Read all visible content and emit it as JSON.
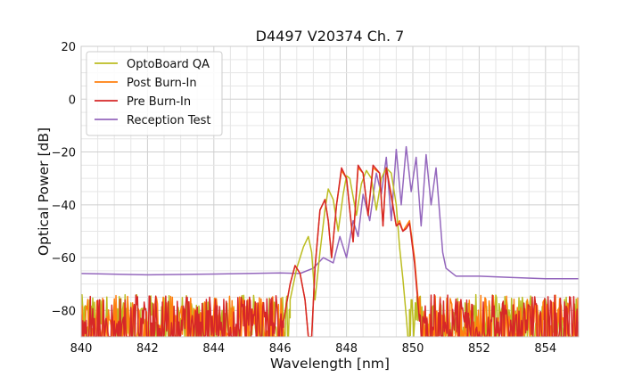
{
  "chart_data": {
    "type": "line",
    "title": "D4497 V20374 Ch. 7",
    "xlabel": "Wavelength [nm]",
    "ylabel": "Optical Power [dB]",
    "xlim": [
      840,
      855
    ],
    "ylim": [
      -90,
      20
    ],
    "xticks": [
      840,
      842,
      844,
      846,
      848,
      850,
      852,
      854
    ],
    "yticks": [
      -80,
      -60,
      -40,
      -20,
      0,
      20
    ],
    "ytick_labels": [
      "−80",
      "−60",
      "−40",
      "−20",
      "0",
      "20"
    ],
    "minor_grid": true,
    "grid": true,
    "legend_location": "top-left",
    "series": [
      {
        "name": "OptoBoard QA",
        "color": "#bcbd22",
        "noise_floor": {
          "x_range": [
            840,
            846.3
          ],
          "base": -82,
          "spread": 8,
          "excluding_x_range": [
            846.3,
            847.0
          ]
        },
        "x": [
          846.3,
          846.5,
          846.6,
          846.7,
          846.85,
          846.95,
          847.05,
          847.2,
          847.35,
          847.45,
          847.6,
          847.75,
          847.9,
          848.0,
          848.1,
          848.3,
          848.45,
          848.6,
          848.75,
          848.9,
          849.05,
          849.2,
          849.35,
          849.5,
          849.6,
          849.7,
          849.8,
          849.85,
          849.9
        ],
        "y": [
          -76,
          -64,
          -60,
          -56,
          -52,
          -58,
          -76,
          -58,
          -42,
          -34,
          -38,
          -50,
          -36,
          -29,
          -30,
          -44,
          -32,
          -27,
          -30,
          -42,
          -30,
          -26,
          -28,
          -40,
          -56,
          -68,
          -82,
          -90,
          -90
        ],
        "noise_floor_after": {
          "x_range": [
            849.9,
            855
          ],
          "base": -82,
          "spread": 8
        }
      },
      {
        "name": "Post Burn-In",
        "color": "#ff7f0e",
        "noise_floor": {
          "x_range": [
            840,
            846.1
          ],
          "base": -82,
          "spread": 8
        },
        "x": [
          846.1,
          846.3,
          846.45,
          846.6,
          846.75,
          846.85,
          846.95,
          847.05,
          847.2,
          847.35,
          847.45,
          847.55,
          847.7,
          847.85,
          848.0,
          848.2,
          848.35,
          848.5,
          848.65,
          848.8,
          849.0,
          849.1,
          849.2,
          849.35,
          849.5,
          849.6,
          849.7,
          849.8,
          849.9,
          850.05,
          850.2
        ],
        "y": [
          -84,
          -70,
          -63,
          -66,
          -76,
          -90,
          -90,
          -64,
          -42,
          -38,
          -46,
          -60,
          -40,
          -27,
          -30,
          -54,
          -26,
          -28,
          -44,
          -26,
          -28,
          -48,
          -26,
          -36,
          -48,
          -46,
          -50,
          -48,
          -46,
          -60,
          -82
        ],
        "noise_floor_after": {
          "x_range": [
            850.2,
            855
          ],
          "base": -82,
          "spread": 8
        }
      },
      {
        "name": "Pre Burn-In",
        "color": "#d62728",
        "noise_floor": {
          "x_range": [
            840,
            846.1
          ],
          "base": -82,
          "spread": 8
        },
        "x": [
          846.1,
          846.3,
          846.45,
          846.6,
          846.75,
          846.85,
          846.95,
          847.05,
          847.2,
          847.35,
          847.45,
          847.55,
          847.7,
          847.85,
          848.0,
          848.2,
          848.35,
          848.5,
          848.65,
          848.8,
          849.0,
          849.1,
          849.2,
          849.35,
          849.5,
          849.6,
          849.7,
          849.8,
          849.9,
          850.05,
          850.2
        ],
        "y": [
          -84,
          -70,
          -63,
          -66,
          -76,
          -90,
          -90,
          -64,
          -42,
          -38,
          -46,
          -60,
          -40,
          -26,
          -30,
          -54,
          -25,
          -28,
          -44,
          -25,
          -28,
          -48,
          -26,
          -37,
          -48,
          -47,
          -50,
          -49,
          -47,
          -62,
          -84
        ],
        "noise_floor_after": {
          "x_range": [
            850.2,
            855
          ],
          "base": -82,
          "spread": 8
        }
      },
      {
        "name": "Reception Test",
        "color": "#9467bd",
        "x": [
          840,
          842,
          844,
          846,
          846.6,
          847.0,
          847.3,
          847.6,
          847.8,
          848.0,
          848.2,
          848.35,
          848.5,
          848.7,
          848.9,
          849.05,
          849.2,
          849.35,
          849.5,
          849.65,
          849.8,
          849.95,
          850.1,
          850.25,
          850.4,
          850.55,
          850.7,
          850.9,
          851.0,
          851.3,
          852,
          853,
          854,
          855
        ],
        "y": [
          -66,
          -66.5,
          -66.2,
          -65.8,
          -66,
          -64,
          -60,
          -62,
          -52,
          -60,
          -46,
          -52,
          -36,
          -46,
          -28,
          -36,
          -22,
          -46,
          -19,
          -40,
          -18,
          -35,
          -22,
          -48,
          -21,
          -40,
          -26,
          -58,
          -64,
          -67,
          -67,
          -67.5,
          -68,
          -68
        ]
      }
    ]
  }
}
